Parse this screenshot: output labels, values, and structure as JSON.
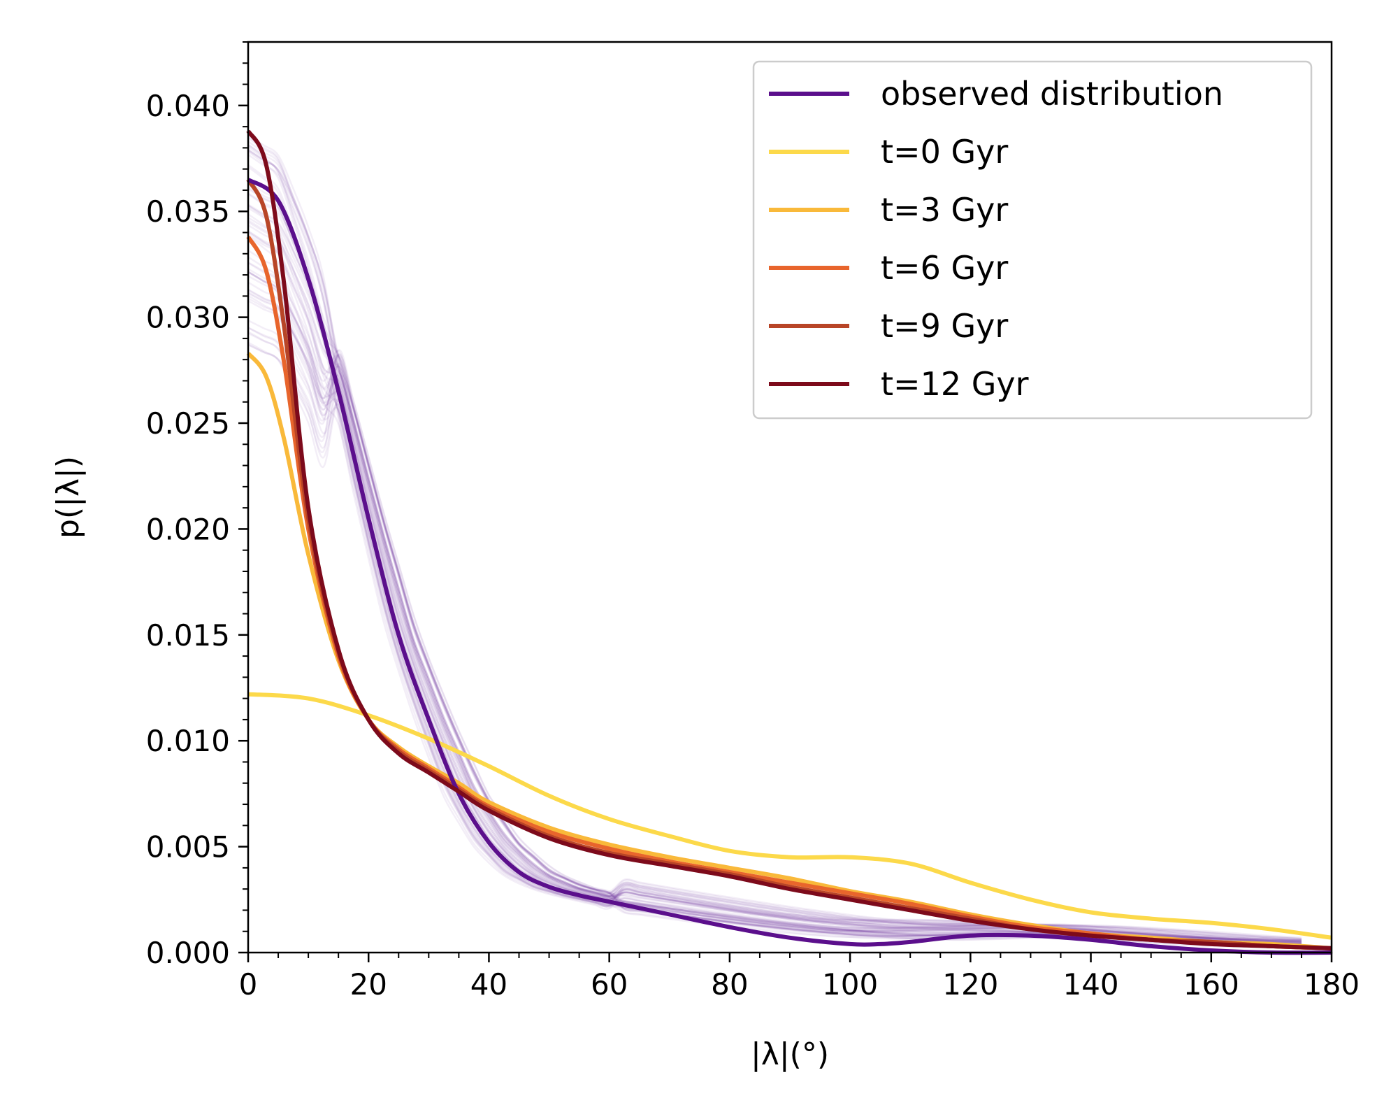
{
  "chart_data": {
    "type": "line",
    "xlabel": "|λ|(°)",
    "ylabel": "p(|λ|)",
    "xlim": [
      0,
      180
    ],
    "ylim": [
      0,
      0.043
    ],
    "xticks": [
      "0",
      "20",
      "40",
      "60",
      "80",
      "100",
      "120",
      "140",
      "160",
      "180"
    ],
    "yticks": [
      "0.000",
      "0.005",
      "0.010",
      "0.015",
      "0.020",
      "0.025",
      "0.030",
      "0.035",
      "0.040"
    ],
    "grid": false,
    "legend_position": "top-right",
    "background_band": {
      "description_color": "#5b0f8c",
      "count": 60,
      "opacity": 0.07
    },
    "series": [
      {
        "name": "observed distribution",
        "color": "#5b0f8c",
        "x": [
          0,
          5,
          10,
          15,
          20,
          25,
          30,
          35,
          40,
          45,
          50,
          55,
          60,
          70,
          80,
          90,
          100,
          105,
          110,
          120,
          130,
          140,
          150,
          160,
          170,
          180
        ],
        "y": [
          0.0365,
          0.0355,
          0.0318,
          0.0265,
          0.0205,
          0.015,
          0.011,
          0.0075,
          0.0052,
          0.0038,
          0.0031,
          0.0027,
          0.0024,
          0.0018,
          0.0012,
          0.0007,
          0.0004,
          0.0004,
          0.0005,
          0.0008,
          0.0008,
          0.0006,
          0.0003,
          0.0001,
          0.0,
          0.0
        ]
      },
      {
        "name": "t=0 Gyr",
        "color": "#fcd94a",
        "x": [
          0,
          10,
          20,
          30,
          40,
          50,
          60,
          70,
          80,
          90,
          100,
          110,
          120,
          130,
          140,
          150,
          160,
          170,
          180
        ],
        "y": [
          0.0122,
          0.012,
          0.0112,
          0.0101,
          0.0088,
          0.0074,
          0.0063,
          0.0055,
          0.0048,
          0.0045,
          0.0045,
          0.0042,
          0.0033,
          0.0025,
          0.0019,
          0.0016,
          0.0014,
          0.0011,
          0.0007
        ]
      },
      {
        "name": "t=3 Gyr",
        "color": "#f9b93a",
        "x": [
          0,
          3,
          6,
          10,
          15,
          20,
          25,
          30,
          35,
          40,
          50,
          60,
          70,
          80,
          90,
          100,
          110,
          120,
          130,
          140,
          150,
          160,
          170,
          180
        ],
        "y": [
          0.0283,
          0.0272,
          0.0242,
          0.0188,
          0.0138,
          0.011,
          0.0097,
          0.0088,
          0.008,
          0.0071,
          0.0059,
          0.0051,
          0.0045,
          0.004,
          0.0035,
          0.0029,
          0.0024,
          0.0018,
          0.0013,
          0.0009,
          0.0007,
          0.0005,
          0.0004,
          0.0002
        ]
      },
      {
        "name": "t=6 Gyr",
        "color": "#e8652c",
        "x": [
          0,
          3,
          6,
          10,
          15,
          20,
          25,
          30,
          35,
          40,
          50,
          60,
          70,
          80,
          90,
          100,
          110,
          120,
          130,
          140,
          150,
          160,
          170,
          180
        ],
        "y": [
          0.0338,
          0.0322,
          0.0278,
          0.02,
          0.014,
          0.011,
          0.0096,
          0.0087,
          0.0078,
          0.0069,
          0.0057,
          0.0049,
          0.0043,
          0.0038,
          0.0033,
          0.0028,
          0.0023,
          0.0017,
          0.0012,
          0.0009,
          0.0006,
          0.0005,
          0.0003,
          0.0002
        ]
      },
      {
        "name": "t=9 Gyr",
        "color": "#b84527",
        "x": [
          0,
          3,
          6,
          10,
          15,
          20,
          25,
          30,
          35,
          40,
          50,
          60,
          70,
          80,
          90,
          100,
          110,
          120,
          130,
          140,
          150,
          160,
          170,
          180
        ],
        "y": [
          0.0365,
          0.0348,
          0.0295,
          0.0205,
          0.0142,
          0.011,
          0.0095,
          0.0086,
          0.0077,
          0.0068,
          0.0055,
          0.0047,
          0.0042,
          0.0037,
          0.0031,
          0.0026,
          0.0021,
          0.0016,
          0.0011,
          0.0008,
          0.0006,
          0.0005,
          0.0003,
          0.0002
        ]
      },
      {
        "name": "t=12 Gyr",
        "color": "#7d0a1b",
        "x": [
          0,
          3,
          6,
          10,
          15,
          20,
          25,
          30,
          35,
          40,
          50,
          60,
          70,
          80,
          90,
          100,
          110,
          120,
          130,
          140,
          150,
          160,
          170,
          180
        ],
        "y": [
          0.0388,
          0.0372,
          0.0315,
          0.021,
          0.0143,
          0.011,
          0.0094,
          0.0085,
          0.0076,
          0.0067,
          0.0054,
          0.0046,
          0.0041,
          0.0036,
          0.003,
          0.0025,
          0.002,
          0.0015,
          0.0011,
          0.0008,
          0.0006,
          0.0004,
          0.0003,
          0.0002
        ]
      }
    ]
  }
}
